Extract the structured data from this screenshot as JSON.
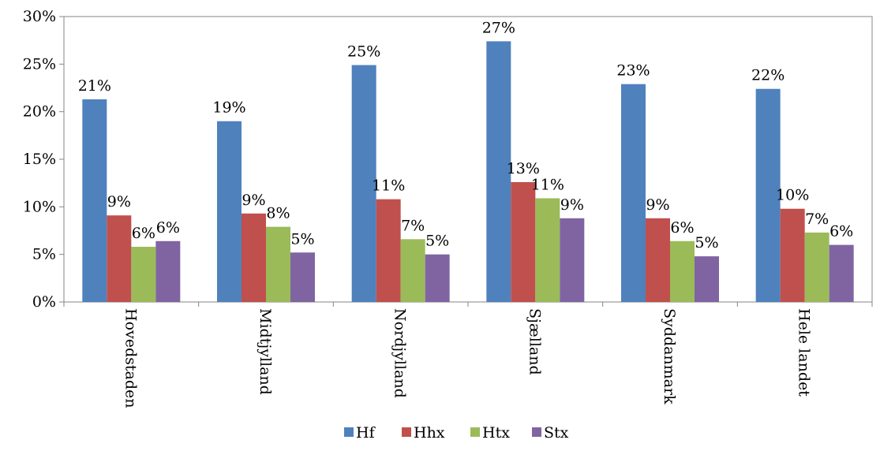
{
  "chart_data": {
    "type": "bar",
    "categories": [
      "Hovedstaden",
      "Midtjylland",
      "Nordjylland",
      "Sjælland",
      "Syddanmark",
      "Hele landet"
    ],
    "series": [
      {
        "name": "Hf",
        "color": "#4F81BD",
        "values": [
          21.3,
          19.0,
          24.9,
          27.4,
          22.9,
          22.4
        ],
        "labels": [
          "21%",
          "19%",
          "25%",
          "27%",
          "23%",
          "22%"
        ]
      },
      {
        "name": "Hhx",
        "color": "#C0504D",
        "values": [
          9.1,
          9.3,
          10.8,
          12.6,
          8.8,
          9.8
        ],
        "labels": [
          "9%",
          "9%",
          "11%",
          "13%",
          "9%",
          "10%"
        ]
      },
      {
        "name": "Htx",
        "color": "#9BBB59",
        "values": [
          5.8,
          7.9,
          6.6,
          10.9,
          6.4,
          7.3
        ],
        "labels": [
          "6%",
          "8%",
          "7%",
          "11%",
          "6%",
          "7%"
        ]
      },
      {
        "name": "Stx",
        "color": "#8064A2",
        "values": [
          6.4,
          5.2,
          5.0,
          8.8,
          4.8,
          6.0
        ],
        "labels": [
          "6%",
          "5%",
          "5%",
          "9%",
          "5%",
          "6%"
        ]
      }
    ],
    "ylim": [
      0,
      30
    ],
    "yticks": [
      {
        "value": 0,
        "label": "0%"
      },
      {
        "value": 5,
        "label": "5%"
      },
      {
        "value": 10,
        "label": "10%"
      },
      {
        "value": 15,
        "label": "15%"
      },
      {
        "value": 20,
        "label": "20%"
      },
      {
        "value": 25,
        "label": "25%"
      },
      {
        "value": 30,
        "label": "30%"
      }
    ],
    "grid": false,
    "legend_position": "bottom",
    "category_label_orientation": "vertical"
  }
}
